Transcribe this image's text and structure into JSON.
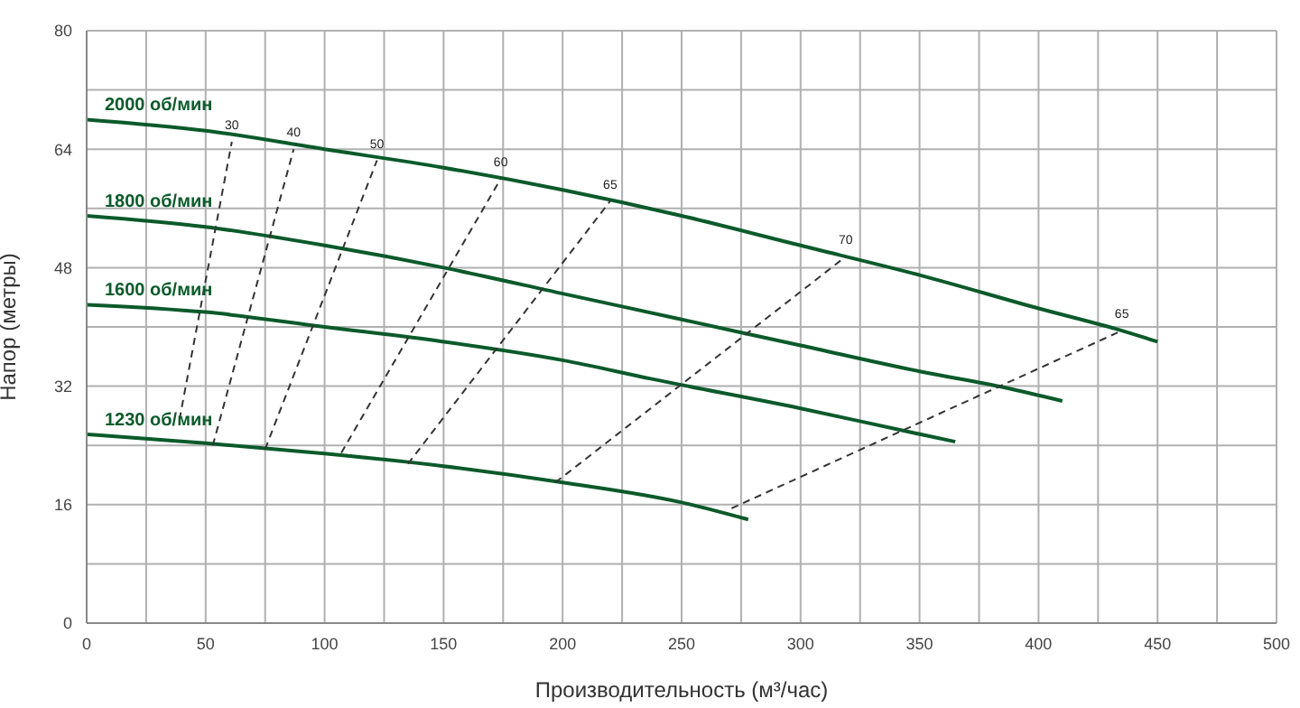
{
  "chart_data": {
    "type": "line",
    "xlabel": "Производительность (м³/час)",
    "ylabel": "Напор (метры)",
    "xlim": [
      0,
      500
    ],
    "ylim": [
      0,
      80
    ],
    "xticks": [
      0,
      {
        "value": 25,
        "label": null
      },
      50,
      {
        "value": 75,
        "label": null
      },
      100,
      {
        "value": 125,
        "label": null
      },
      150,
      {
        "value": 175,
        "label": null
      },
      200,
      {
        "value": 225,
        "label": null
      },
      250,
      {
        "value": 275,
        "label": null
      },
      300,
      {
        "value": 325,
        "label": null
      },
      350,
      {
        "value": 375,
        "label": null
      },
      400,
      {
        "value": 425,
        "label": null
      },
      450,
      {
        "value": 475,
        "label": null
      },
      500
    ],
    "yticks": [
      0,
      {
        "value": 8,
        "label": null
      },
      16,
      {
        "value": 24,
        "label": null
      },
      32,
      {
        "value": 40,
        "label": null
      },
      48,
      {
        "value": 56,
        "label": null
      },
      64,
      {
        "value": 72,
        "label": null
      },
      80
    ],
    "grid": true,
    "marker": "none",
    "line_style": "solid",
    "series": [
      {
        "name": "2000 об/мин",
        "color": "#0b5a2a",
        "x": [
          0,
          50,
          100,
          150,
          200,
          250,
          300,
          350,
          400,
          435,
          450
        ],
        "values": [
          68,
          66.5,
          64,
          61.5,
          58.5,
          55,
          51,
          47,
          42.5,
          39.5,
          38
        ]
      },
      {
        "name": "1800 об/мин",
        "color": "#0b5a2a",
        "x": [
          0,
          50,
          100,
          150,
          200,
          250,
          300,
          350,
          386,
          410
        ],
        "values": [
          55,
          53.5,
          51,
          48,
          44.5,
          41,
          37.5,
          34,
          31.8,
          30
        ]
      },
      {
        "name": "1600 об/мин",
        "color": "#0b5a2a",
        "x": [
          0,
          50,
          100,
          150,
          200,
          237,
          300,
          343,
          365
        ],
        "values": [
          43,
          42,
          40,
          38,
          35.5,
          33,
          29,
          26,
          24.5
        ]
      },
      {
        "name": "1230 об/мин",
        "color": "#0b5a2a",
        "x": [
          0,
          50,
          100,
          150,
          200,
          250,
          278
        ],
        "values": [
          25.5,
          24.3,
          22.9,
          21.2,
          19,
          16.3,
          14
        ]
      },
      {
        "name": "30",
        "color": "#333333",
        "line_style": "dashed",
        "x": [
          39,
          61
        ],
        "values": [
          27.5,
          65
        ]
      },
      {
        "name": "40",
        "color": "#333333",
        "line_style": "dashed",
        "x": [
          53,
          87
        ],
        "values": [
          24,
          64
        ]
      },
      {
        "name": "50",
        "color": "#333333",
        "line_style": "dashed",
        "x": [
          75,
          122
        ],
        "values": [
          23.5,
          62.5
        ]
      },
      {
        "name": "60",
        "color": "#333333",
        "line_style": "dashed",
        "x": [
          107,
          174
        ],
        "values": [
          23,
          60
        ]
      },
      {
        "name": "65",
        "color": "#333333",
        "line_style": "dashed",
        "x": [
          135,
          220
        ],
        "values": [
          21.5,
          57
        ]
      },
      {
        "name": "70",
        "color": "#333333",
        "line_style": "dashed",
        "x": [
          197,
          319
        ],
        "values": [
          19,
          49.5
        ]
      },
      {
        "name": "65",
        "color": "#333333",
        "line_style": "dashed",
        "x": [
          271,
          435
        ],
        "values": [
          15.5,
          39.5
        ]
      }
    ]
  }
}
